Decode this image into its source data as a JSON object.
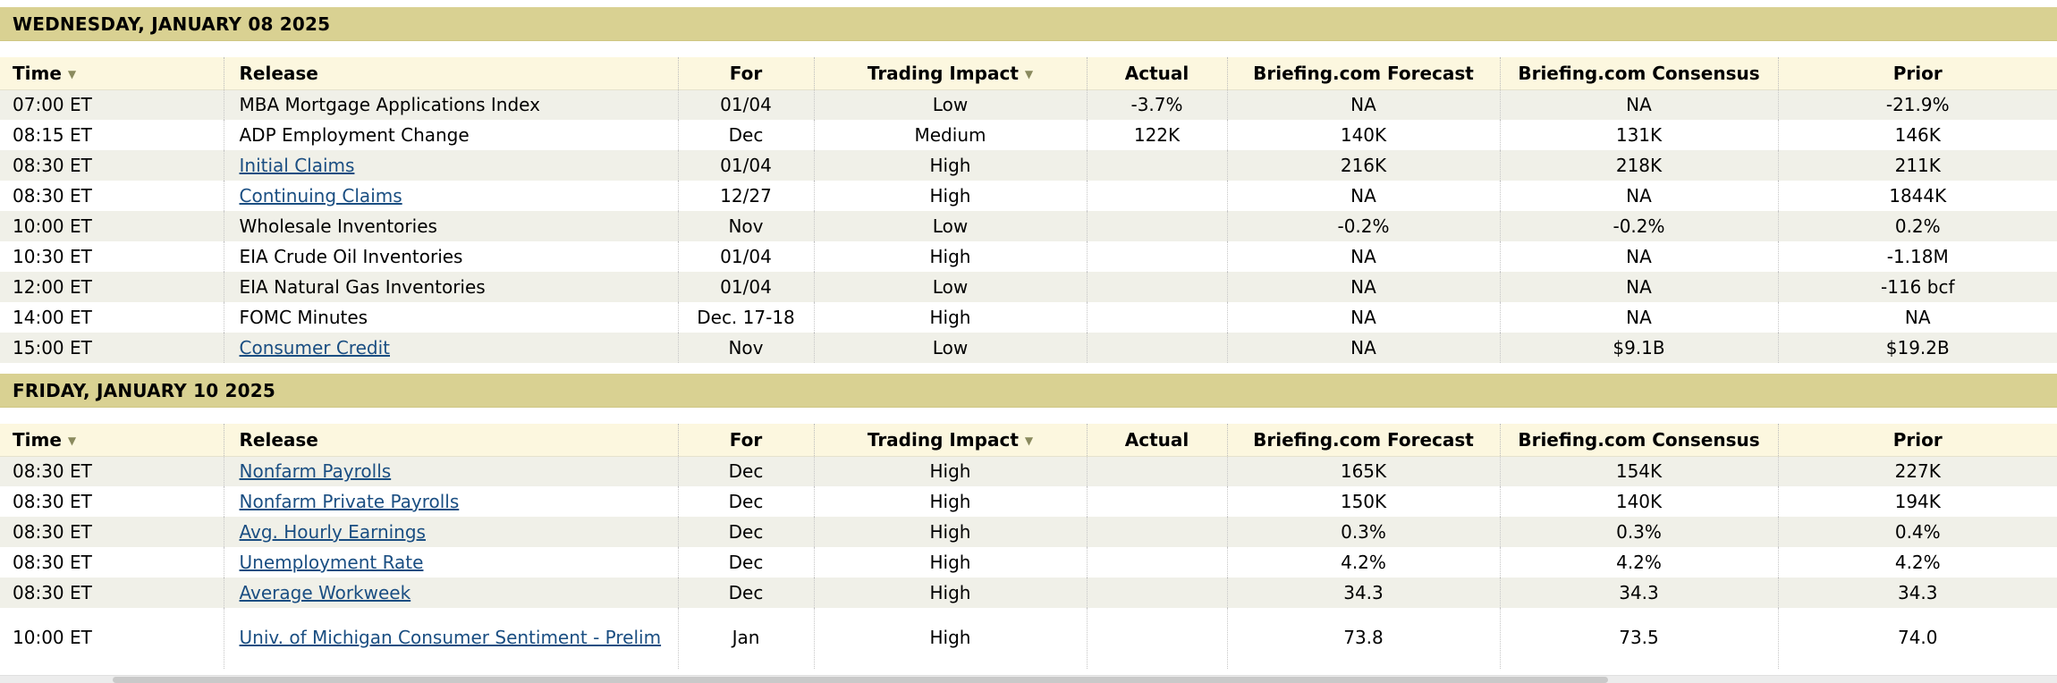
{
  "icons": {
    "time_sort": {
      "name": "sort-down-arrow",
      "glyph": "▼"
    },
    "impact_filter": {
      "name": "dropdown-arrow",
      "glyph": "▼"
    }
  },
  "colors": {
    "date_band_bg": "#d9d192",
    "column_header_bg": "#fcf7df",
    "row_alt_bg": "#f0f0e8",
    "row_bg": "#ffffff",
    "link_color": "#1a4e82",
    "text_color": "#000000"
  },
  "table": {
    "columns": [
      "Time",
      "Release",
      "For",
      "Trading Impact",
      "Actual",
      "Briefing.com Forecast",
      "Briefing.com Consensus",
      "Prior"
    ],
    "sections": [
      {
        "date": "WEDNESDAY, JANUARY 08 2025",
        "rows": [
          {
            "time": "07:00 ET",
            "release": "MBA Mortgage Applications Index",
            "is_link": false,
            "for": "01/04",
            "impact": "Low",
            "actual": "-3.7%",
            "forecast": "NA",
            "consensus": "NA",
            "prior": "-21.9%"
          },
          {
            "time": "08:15 ET",
            "release": "ADP Employment Change",
            "is_link": false,
            "for": "Dec",
            "impact": "Medium",
            "actual": "122K",
            "forecast": "140K",
            "consensus": "131K",
            "prior": "146K"
          },
          {
            "time": "08:30 ET",
            "release": "Initial Claims",
            "is_link": true,
            "for": "01/04",
            "impact": "High",
            "actual": "",
            "forecast": "216K",
            "consensus": "218K",
            "prior": "211K"
          },
          {
            "time": "08:30 ET",
            "release": "Continuing Claims",
            "is_link": true,
            "for": "12/27",
            "impact": "High",
            "actual": "",
            "forecast": "NA",
            "consensus": "NA",
            "prior": "1844K"
          },
          {
            "time": "10:00 ET",
            "release": "Wholesale Inventories",
            "is_link": false,
            "for": "Nov",
            "impact": "Low",
            "actual": "",
            "forecast": "-0.2%",
            "consensus": "-0.2%",
            "prior": "0.2%"
          },
          {
            "time": "10:30 ET",
            "release": "EIA Crude Oil Inventories",
            "is_link": false,
            "for": "01/04",
            "impact": "High",
            "actual": "",
            "forecast": "NA",
            "consensus": "NA",
            "prior": "-1.18M"
          },
          {
            "time": "12:00 ET",
            "release": "EIA Natural Gas Inventories",
            "is_link": false,
            "for": "01/04",
            "impact": "Low",
            "actual": "",
            "forecast": "NA",
            "consensus": "NA",
            "prior": "-116 bcf"
          },
          {
            "time": "14:00 ET",
            "release": "FOMC Minutes",
            "is_link": false,
            "for": "Dec. 17-18",
            "impact": "High",
            "actual": "",
            "forecast": "NA",
            "consensus": "NA",
            "prior": "NA"
          },
          {
            "time": "15:00 ET",
            "release": "Consumer Credit",
            "is_link": true,
            "for": "Nov",
            "impact": "Low",
            "actual": "",
            "forecast": "NA",
            "consensus": "$9.1B",
            "prior": "$19.2B"
          }
        ]
      },
      {
        "date": "FRIDAY, JANUARY 10 2025",
        "rows": [
          {
            "time": "08:30 ET",
            "release": "Nonfarm Payrolls",
            "is_link": true,
            "for": "Dec",
            "impact": "High",
            "actual": "",
            "forecast": "165K",
            "consensus": "154K",
            "prior": "227K"
          },
          {
            "time": "08:30 ET",
            "release": "Nonfarm Private Payrolls",
            "is_link": true,
            "for": "Dec",
            "impact": "High",
            "actual": "",
            "forecast": "150K",
            "consensus": "140K",
            "prior": "194K"
          },
          {
            "time": "08:30 ET",
            "release": "Avg. Hourly Earnings",
            "is_link": true,
            "for": "Dec",
            "impact": "High",
            "actual": "",
            "forecast": "0.3%",
            "consensus": "0.3%",
            "prior": "0.4%"
          },
          {
            "time": "08:30 ET",
            "release": "Unemployment Rate",
            "is_link": true,
            "for": "Dec",
            "impact": "High",
            "actual": "",
            "forecast": "4.2%",
            "consensus": "4.2%",
            "prior": "4.2%"
          },
          {
            "time": "08:30 ET",
            "release": "Average Workweek",
            "is_link": true,
            "for": "Dec",
            "impact": "High",
            "actual": "",
            "forecast": "34.3",
            "consensus": "34.3",
            "prior": "34.3"
          },
          {
            "time": "10:00 ET",
            "release": "Univ. of Michigan Consumer Sentiment - Prelim",
            "is_link": true,
            "for": "Jan",
            "impact": "High",
            "actual": "",
            "forecast": "73.8",
            "consensus": "73.5",
            "prior": "74.0"
          }
        ]
      }
    ]
  }
}
